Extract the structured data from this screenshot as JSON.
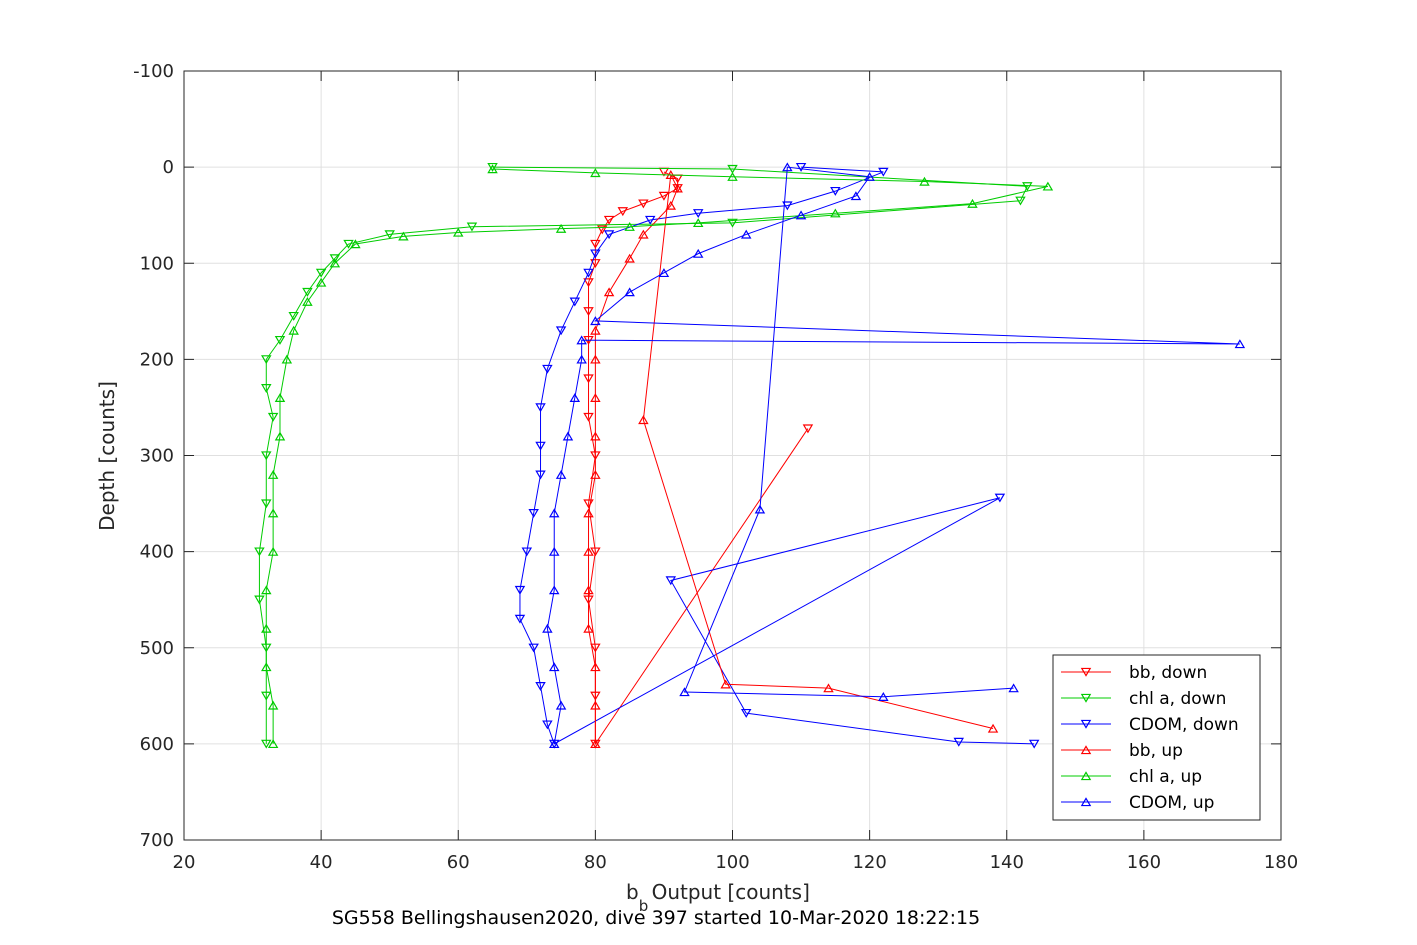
{
  "chart_data": {
    "type": "scatter",
    "title": "",
    "xlabel": {
      "main": "b",
      "sub": "b",
      "rest": " Output [counts]"
    },
    "ylabel": "Depth [counts]",
    "caption": "SG558 Bellingshausen2020, dive 397 started 10-Mar-2020 18:22:15",
    "xlim": [
      20,
      180
    ],
    "ylim": [
      -100,
      700
    ],
    "y_reversed": true,
    "grid": true,
    "legend_position": "bottom-right",
    "x_ticks": [
      "20",
      "40",
      "60",
      "80",
      "100",
      "120",
      "140",
      "160",
      "180"
    ],
    "y_ticks": [
      "-100",
      "0",
      "100",
      "200",
      "300",
      "400",
      "500",
      "600",
      "700"
    ],
    "series": [
      {
        "name": "bb, down",
        "color": "#ff0000",
        "marker": "triangle-down",
        "connected": true,
        "points": [
          [
            90,
            5
          ],
          [
            92,
            12
          ],
          [
            92,
            22
          ],
          [
            90,
            30
          ],
          [
            87,
            38
          ],
          [
            84,
            46
          ],
          [
            82,
            55
          ],
          [
            81,
            65
          ],
          [
            80,
            80
          ],
          [
            80,
            100
          ],
          [
            79,
            120
          ],
          [
            79,
            150
          ],
          [
            79,
            180
          ],
          [
            79,
            220
          ],
          [
            79,
            260
          ],
          [
            80,
            300
          ],
          [
            79,
            350
          ],
          [
            80,
            400
          ],
          [
            79,
            450
          ],
          [
            80,
            500
          ],
          [
            80,
            550
          ],
          [
            80,
            600
          ],
          [
            111,
            272
          ]
        ]
      },
      {
        "name": "chl a, down",
        "color": "#00cc00",
        "marker": "triangle-down",
        "connected": true,
        "points": [
          [
            65,
            0
          ],
          [
            100,
            2
          ],
          [
            143,
            20
          ],
          [
            142,
            35
          ],
          [
            100,
            58
          ],
          [
            62,
            62
          ],
          [
            50,
            70
          ],
          [
            44,
            80
          ],
          [
            42,
            95
          ],
          [
            40,
            110
          ],
          [
            38,
            130
          ],
          [
            36,
            155
          ],
          [
            34,
            180
          ],
          [
            32,
            200
          ],
          [
            32,
            230
          ],
          [
            33,
            260
          ],
          [
            32,
            300
          ],
          [
            32,
            350
          ],
          [
            31,
            400
          ],
          [
            31,
            450
          ],
          [
            32,
            500
          ],
          [
            32,
            550
          ],
          [
            32,
            600
          ]
        ]
      },
      {
        "name": "CDOM, down",
        "color": "#0000ff",
        "marker": "triangle-down",
        "connected": true,
        "points": [
          [
            110,
            0
          ],
          [
            122,
            5
          ],
          [
            115,
            25
          ],
          [
            108,
            40
          ],
          [
            95,
            48
          ],
          [
            88,
            55
          ],
          [
            82,
            70
          ],
          [
            80,
            90
          ],
          [
            79,
            110
          ],
          [
            77,
            140
          ],
          [
            75,
            170
          ],
          [
            73,
            210
          ],
          [
            72,
            250
          ],
          [
            72,
            290
          ],
          [
            72,
            320
          ],
          [
            71,
            360
          ],
          [
            70,
            400
          ],
          [
            69,
            440
          ],
          [
            69,
            470
          ],
          [
            71,
            500
          ],
          [
            72,
            540
          ],
          [
            73,
            580
          ],
          [
            74,
            600
          ],
          [
            139,
            344
          ],
          [
            91,
            430
          ],
          [
            102,
            568
          ],
          [
            133,
            598
          ],
          [
            144,
            600
          ]
        ]
      },
      {
        "name": "bb, up",
        "color": "#ff0000",
        "marker": "triangle-up",
        "connected": true,
        "points": [
          [
            80,
            600
          ],
          [
            80,
            560
          ],
          [
            80,
            520
          ],
          [
            79,
            480
          ],
          [
            79,
            440
          ],
          [
            79,
            400
          ],
          [
            79,
            360
          ],
          [
            80,
            320
          ],
          [
            80,
            280
          ],
          [
            80,
            240
          ],
          [
            80,
            200
          ],
          [
            80,
            170
          ],
          [
            82,
            130
          ],
          [
            85,
            95
          ],
          [
            87,
            70
          ],
          [
            91,
            40
          ],
          [
            92,
            22
          ],
          [
            91,
            8
          ],
          [
            87,
            263
          ],
          [
            99,
            538
          ],
          [
            114,
            542
          ],
          [
            138,
            584
          ]
        ]
      },
      {
        "name": "chl a, up",
        "color": "#00cc00",
        "marker": "triangle-up",
        "connected": true,
        "points": [
          [
            33,
            600
          ],
          [
            33,
            560
          ],
          [
            32,
            520
          ],
          [
            32,
            480
          ],
          [
            32,
            440
          ],
          [
            33,
            400
          ],
          [
            33,
            360
          ],
          [
            33,
            320
          ],
          [
            34,
            280
          ],
          [
            34,
            240
          ],
          [
            35,
            200
          ],
          [
            36,
            170
          ],
          [
            38,
            140
          ],
          [
            40,
            120
          ],
          [
            42,
            100
          ],
          [
            45,
            80
          ],
          [
            52,
            72
          ],
          [
            60,
            68
          ],
          [
            75,
            64
          ],
          [
            85,
            62
          ],
          [
            95,
            58
          ],
          [
            115,
            48
          ],
          [
            135,
            38
          ],
          [
            146,
            20
          ],
          [
            128,
            15
          ],
          [
            100,
            10
          ],
          [
            80,
            6
          ],
          [
            65,
            2
          ]
        ]
      },
      {
        "name": "CDOM, up",
        "color": "#0000ff",
        "marker": "triangle-up",
        "connected": true,
        "points": [
          [
            74,
            600
          ],
          [
            75,
            560
          ],
          [
            74,
            520
          ],
          [
            73,
            480
          ],
          [
            74,
            440
          ],
          [
            74,
            400
          ],
          [
            74,
            360
          ],
          [
            75,
            320
          ],
          [
            76,
            280
          ],
          [
            77,
            240
          ],
          [
            78,
            200
          ],
          [
            78,
            180
          ],
          [
            174,
            184
          ],
          [
            80,
            160
          ],
          [
            85,
            130
          ],
          [
            90,
            110
          ],
          [
            95,
            90
          ],
          [
            102,
            70
          ],
          [
            110,
            50
          ],
          [
            118,
            30
          ],
          [
            120,
            10
          ],
          [
            108,
            0
          ],
          [
            104,
            356
          ],
          [
            93,
            546
          ],
          [
            122,
            551
          ],
          [
            141,
            542
          ]
        ]
      }
    ]
  }
}
